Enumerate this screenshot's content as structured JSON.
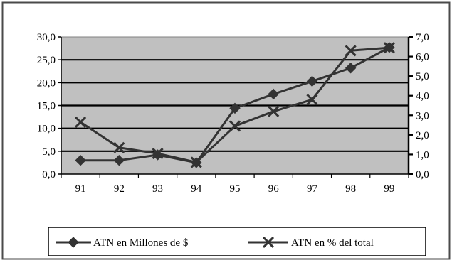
{
  "chart_data": {
    "type": "line",
    "categories": [
      "91",
      "92",
      "93",
      "94",
      "95",
      "96",
      "97",
      "98",
      "99"
    ],
    "y_left": {
      "range": [
        0,
        30
      ],
      "ticks": [
        "0,0",
        "5,0",
        "10,0",
        "15,0",
        "20,0",
        "25,0",
        "30,0"
      ]
    },
    "y_right": {
      "range": [
        0,
        7
      ],
      "ticks": [
        "0,0",
        "1,0",
        "2,0",
        "3,0",
        "4,0",
        "5,0",
        "6,0",
        "7,0"
      ]
    },
    "series": [
      {
        "name": "ATN en Millones de $",
        "axis": "left",
        "marker": "diamond",
        "values": [
          3.0,
          3.0,
          4.2,
          2.5,
          14.4,
          17.5,
          20.3,
          23.2,
          27.7
        ]
      },
      {
        "name": "ATN en % del total",
        "axis": "right",
        "marker": "x",
        "values": [
          2.65,
          1.35,
          1.05,
          0.6,
          2.45,
          3.2,
          3.8,
          6.3,
          6.45
        ]
      }
    ],
    "plot_background": "#c0c0c0",
    "line_color": "#333333",
    "grid": true,
    "legend_position": "bottom"
  }
}
